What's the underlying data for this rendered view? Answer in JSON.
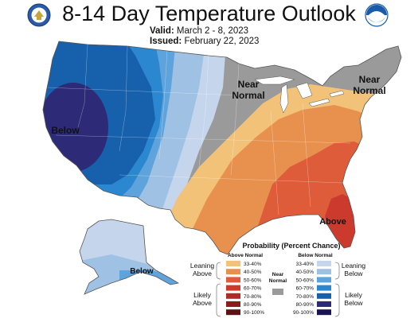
{
  "title": "8-14 Day Temperature Outlook",
  "valid_label": "Valid:",
  "valid_value": "March 2 - 8, 2023",
  "issued_label": "Issued:",
  "issued_value": "February 22, 2023",
  "logos": {
    "left": "commerce-seal-icon",
    "right": "noaa-logo-icon"
  },
  "map_labels": {
    "near_normal_central": [
      "Near",
      "Normal"
    ],
    "near_normal_northeast": [
      "Near",
      "Normal"
    ],
    "below_west": "Below",
    "below_alaska": "Below",
    "above_southeast": "Above"
  },
  "legend": {
    "title": "Probability (Percent Chance)",
    "above_header": "Above Normal",
    "below_header": "Below Normal",
    "near_header": [
      "Near",
      "Normal"
    ],
    "leaning_above": [
      "Leaning",
      "Above"
    ],
    "likely_above": [
      "Likely",
      "Above"
    ],
    "leaning_below": [
      "Leaning",
      "Below"
    ],
    "likely_below": [
      "Likely",
      "Below"
    ],
    "above": [
      {
        "range": "33-40%",
        "color": "#f2c279"
      },
      {
        "range": "40-50%",
        "color": "#e8914f"
      },
      {
        "range": "50-60%",
        "color": "#de5c3a"
      },
      {
        "range": "60-70%",
        "color": "#cc3a2e"
      },
      {
        "range": "70-80%",
        "color": "#b02a27"
      },
      {
        "range": "80-90%",
        "color": "#8c1d1d"
      },
      {
        "range": "90-100%",
        "color": "#5e1212"
      }
    ],
    "below": [
      {
        "range": "33-40%",
        "color": "#c5d6ec"
      },
      {
        "range": "40-50%",
        "color": "#9fc1e3"
      },
      {
        "range": "50-60%",
        "color": "#5fa3dc"
      },
      {
        "range": "60-70%",
        "color": "#2a87d0"
      },
      {
        "range": "70-80%",
        "color": "#1660ac"
      },
      {
        "range": "80-90%",
        "color": "#2d2a78"
      },
      {
        "range": "90-100%",
        "color": "#1a1450"
      }
    ],
    "near_color": "#9a9a9a"
  }
}
